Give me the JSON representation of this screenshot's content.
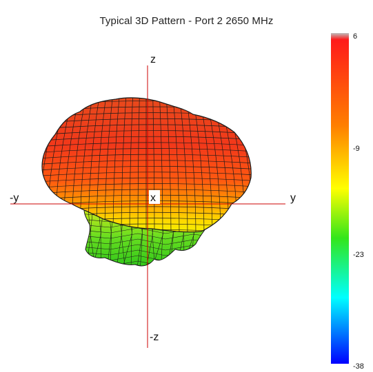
{
  "title": "Typical 3D Pattern - Port 2 2650 MHz",
  "chart_data": {
    "type": "3d-radiation-pattern",
    "title": "Typical 3D Pattern - Port 2 2650 MHz",
    "axes": {
      "z_pos": "z",
      "z_neg": "-z",
      "y_pos": "y",
      "y_neg": "-y",
      "x_center": "x"
    },
    "colorbar": {
      "ticks": [
        "6",
        "-9",
        "-23",
        "-38"
      ],
      "range": [
        -38,
        6
      ],
      "colors": {
        "top": "#ff1a1a",
        "orange": "#ff7f00",
        "yellow": "#ffff00",
        "green": "#33e61a",
        "cyan": "#00ffff",
        "blue": "#0000ff"
      }
    },
    "axis_color": "#cc0000"
  }
}
